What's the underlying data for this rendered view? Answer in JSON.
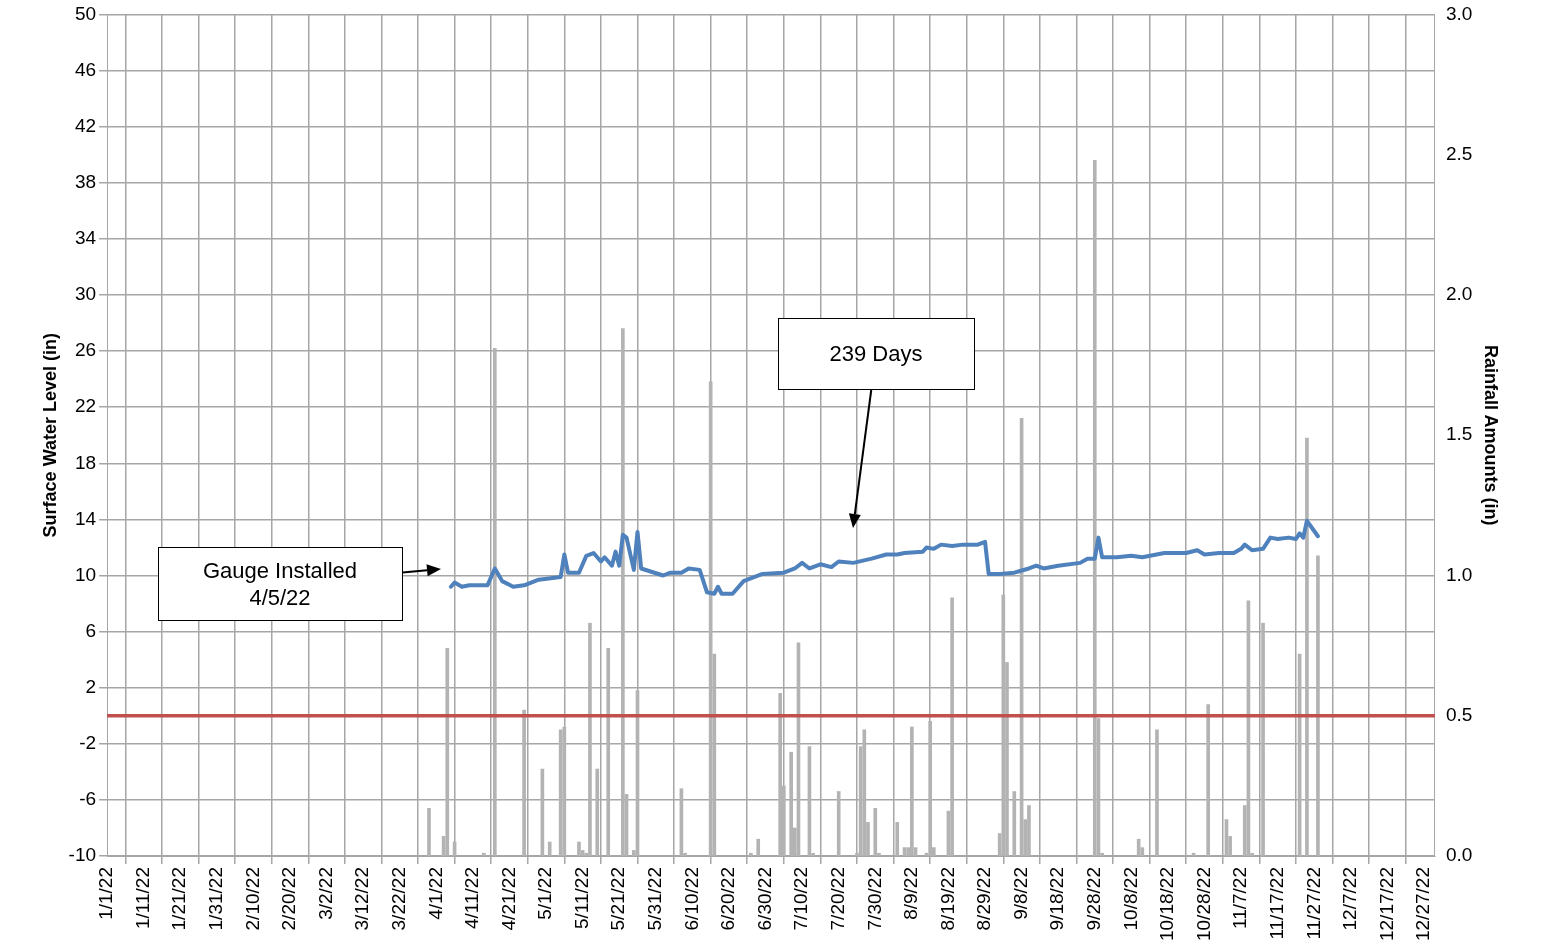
{
  "chart_data": {
    "type": "line",
    "ylabel": "Surface Water Level (in)",
    "y2label": "Rainfall Amounts (in)",
    "grid": true,
    "xlim": [
      "--01-01",
      "--12-30"
    ],
    "xticks": [
      {
        "value": "--01-01",
        "label": "1/1/22"
      },
      {
        "value": "--01-11",
        "label": "1/11/22"
      },
      {
        "value": "--01-21",
        "label": "1/21/22"
      },
      {
        "value": "--01-31",
        "label": "1/31/22"
      },
      {
        "value": "--02-10",
        "label": "2/10/22"
      },
      {
        "value": "--02-20",
        "label": "2/20/22"
      },
      {
        "value": "--03-02",
        "label": "3/2/22"
      },
      {
        "value": "--03-12",
        "label": "3/12/22"
      },
      {
        "value": "--03-22",
        "label": "3/22/22"
      },
      {
        "value": "--04-01",
        "label": "4/1/22"
      },
      {
        "value": "--04-11",
        "label": "4/11/22"
      },
      {
        "value": "--04-21",
        "label": "4/21/22"
      },
      {
        "value": "--05-01",
        "label": "5/1/22"
      },
      {
        "value": "--05-11",
        "label": "5/11/22"
      },
      {
        "value": "--05-21",
        "label": "5/21/22"
      },
      {
        "value": "--05-31",
        "label": "5/31/22"
      },
      {
        "value": "--06-10",
        "label": "6/10/22"
      },
      {
        "value": "--06-20",
        "label": "6/20/22"
      },
      {
        "value": "--06-30",
        "label": "6/30/22"
      },
      {
        "value": "--07-10",
        "label": "7/10/22"
      },
      {
        "value": "--07-20",
        "label": "7/20/22"
      },
      {
        "value": "--07-30",
        "label": "7/30/22"
      },
      {
        "value": "--08-09",
        "label": "8/9/22"
      },
      {
        "value": "--08-19",
        "label": "8/19/22"
      },
      {
        "value": "--08-29",
        "label": "8/29/22"
      },
      {
        "value": "--09-08",
        "label": "9/8/22"
      },
      {
        "value": "--09-18",
        "label": "9/18/22"
      },
      {
        "value": "--09-28",
        "label": "9/28/22"
      },
      {
        "value": "--10-08",
        "label": "10/8/22"
      },
      {
        "value": "--10-18",
        "label": "10/18/22"
      },
      {
        "value": "--10-28",
        "label": "10/28/22"
      },
      {
        "value": "--11-07",
        "label": "11/7/22"
      },
      {
        "value": "--11-17",
        "label": "11/17/22"
      },
      {
        "value": "--11-27",
        "label": "11/27/22"
      },
      {
        "value": "--12-07",
        "label": "12/7/22"
      },
      {
        "value": "--12-17",
        "label": "12/17/22"
      },
      {
        "value": "--12-27",
        "label": "12/27/22"
      }
    ],
    "ylim": [
      -10,
      50
    ],
    "yticks": [
      -10,
      -6,
      -2,
      2,
      6,
      10,
      14,
      18,
      22,
      26,
      30,
      34,
      38,
      42,
      46,
      50
    ],
    "y2lim": [
      0,
      3
    ],
    "y2ticks": [
      {
        "value": 0,
        "label": "0.0"
      },
      {
        "value": 0.5,
        "label": "0.5"
      },
      {
        "value": 1,
        "label": "1.0"
      },
      {
        "value": 1.5,
        "label": "1.5"
      },
      {
        "value": 2,
        "label": "2.0"
      },
      {
        "value": 2.5,
        "label": "2.5"
      },
      {
        "value": 3,
        "label": "3.0"
      }
    ],
    "ref_lines": [
      {
        "axis": "y",
        "value": 0,
        "color": "#c0504d"
      }
    ],
    "annotations": [
      "Gauge Installed 4/5/22",
      "239 Days"
    ],
    "series": [
      {
        "color": "#4f81bd",
        "x": [
          "--04-05",
          "--04-06",
          "--04-08",
          "--04-10",
          "--04-15",
          "--04-17",
          "--04-19",
          "--04-22",
          "--04-25",
          "--04-29",
          "--05-05",
          "--05-06",
          "--05-07",
          "--05-10",
          "--05-12",
          "--05-14",
          "--05-16",
          "--05-17",
          "--05-19",
          "--05-20",
          "--05-21",
          "--05-22",
          "--05-23",
          "--05-25",
          "--05-26",
          "--05-27",
          "--06-02",
          "--06-04",
          "--06-07",
          "--06-09",
          "--06-12",
          "--06-14",
          "--06-16",
          "--06-17",
          "--06-18",
          "--06-21",
          "--06-24",
          "--06-29",
          "--07-05",
          "--07-08",
          "--07-10",
          "--07-12",
          "--07-15",
          "--07-18",
          "--07-20",
          "--07-24",
          "--07-29",
          "--08-02",
          "--08-05",
          "--08-07",
          "--08-12",
          "--08-13",
          "--08-15",
          "--08-17",
          "--08-20",
          "--08-23",
          "--08-27",
          "--08-29",
          "--08-30",
          "--09-02",
          "--09-06",
          "--09-10",
          "--09-12",
          "--09-14",
          "--09-18",
          "--09-24",
          "--09-26",
          "--09-28",
          "--09-29",
          "--09-30",
          "--10-04",
          "--10-08",
          "--10-11",
          "--10-17",
          "--10-23",
          "--10-26",
          "--10-28",
          "--11-01",
          "--11-05",
          "--11-07",
          "--11-08",
          "--11-10",
          "--11-13",
          "--11-15",
          "--11-17",
          "--11-20",
          "--11-22",
          "--11-23",
          "--11-24",
          "--11-25",
          "--11-28"
        ],
        "values": [
          9.2,
          9.5,
          9.2,
          9.3,
          9.3,
          10.5,
          9.6,
          9.2,
          9.3,
          9.7,
          9.9,
          11.5,
          10.2,
          10.2,
          11.4,
          11.6,
          11.0,
          11.3,
          10.7,
          11.7,
          10.7,
          12.9,
          12.7,
          10.4,
          13.1,
          10.5,
          10.0,
          10.2,
          10.2,
          10.5,
          10.4,
          8.8,
          8.7,
          9.2,
          8.7,
          8.7,
          9.6,
          10.1,
          10.2,
          10.5,
          10.9,
          10.5,
          10.8,
          10.6,
          11.0,
          10.9,
          11.2,
          11.5,
          11.5,
          11.6,
          11.7,
          12.0,
          11.9,
          12.2,
          12.1,
          12.2,
          12.2,
          12.4,
          10.1,
          10.1,
          10.2,
          10.5,
          10.7,
          10.5,
          10.7,
          10.9,
          11.2,
          11.2,
          12.7,
          11.3,
          11.3,
          11.4,
          11.3,
          11.6,
          11.6,
          11.8,
          11.5,
          11.6,
          11.6,
          11.9,
          12.2,
          11.8,
          11.9,
          12.7,
          12.6,
          12.7,
          12.6,
          13.0,
          12.7,
          13.9,
          12.8
        ]
      },
      {
        "type": "bar",
        "axis": "y2",
        "color": "#b3b3b3",
        "x": [
          "--03-30",
          "--04-03",
          "--04-04",
          "--04-06",
          "--04-14",
          "--04-17",
          "--04-25",
          "--04-30",
          "--05-02",
          "--05-05",
          "--05-06",
          "--05-10",
          "--05-11",
          "--05-12",
          "--05-13",
          "--05-15",
          "--05-18",
          "--05-22",
          "--05-23",
          "--05-25",
          "--05-26",
          "--06-07",
          "--06-08",
          "--06-15",
          "--06-16",
          "--06-26",
          "--06-28",
          "--07-04",
          "--07-05",
          "--07-07",
          "--07-08",
          "--07-09",
          "--07-12",
          "--07-13",
          "--07-20",
          "--07-25",
          "--07-26",
          "--07-27",
          "--07-28",
          "--07-30",
          "--07-31",
          "--08-05",
          "--08-07",
          "--08-08",
          "--08-09",
          "--08-10",
          "--08-13",
          "--08-14",
          "--08-15",
          "--08-19",
          "--08-20",
          "--09-02",
          "--09-03",
          "--09-04",
          "--09-06",
          "--09-08",
          "--09-09",
          "--09-10",
          "--09-28",
          "--09-29",
          "--09-30",
          "--10-10",
          "--10-11",
          "--10-15",
          "--10-25",
          "--10-29",
          "--11-03",
          "--11-04",
          "--11-08",
          "--11-09",
          "--11-10",
          "--11-13",
          "--11-23",
          "--11-25",
          "--11-28"
        ],
        "values": [
          0.17,
          0.07,
          0.74,
          0.05,
          0.01,
          1.81,
          0.52,
          0.31,
          0.05,
          0.45,
          0.46,
          0.05,
          0.02,
          0.01,
          0.83,
          0.31,
          0.74,
          1.88,
          0.22,
          0.02,
          0.59,
          0.24,
          0.01,
          1.69,
          0.72,
          0.01,
          0.06,
          0.58,
          0.25,
          0.37,
          0.1,
          0.76,
          0.39,
          0.01,
          0.23,
          0.01,
          0.39,
          0.45,
          0.12,
          0.17,
          0.01,
          0.12,
          0.03,
          0.03,
          0.46,
          0.03,
          0.01,
          0.48,
          0.03,
          0.16,
          0.92,
          0.08,
          0.93,
          0.69,
          0.23,
          1.56,
          0.13,
          0.18,
          2.48,
          0.49,
          0.01,
          0.06,
          0.03,
          0.45,
          0.01,
          0.54,
          0.13,
          0.07,
          0.18,
          0.91,
          0.01,
          0.83,
          0.72,
          1.49,
          1.07
        ]
      }
    ]
  }
}
